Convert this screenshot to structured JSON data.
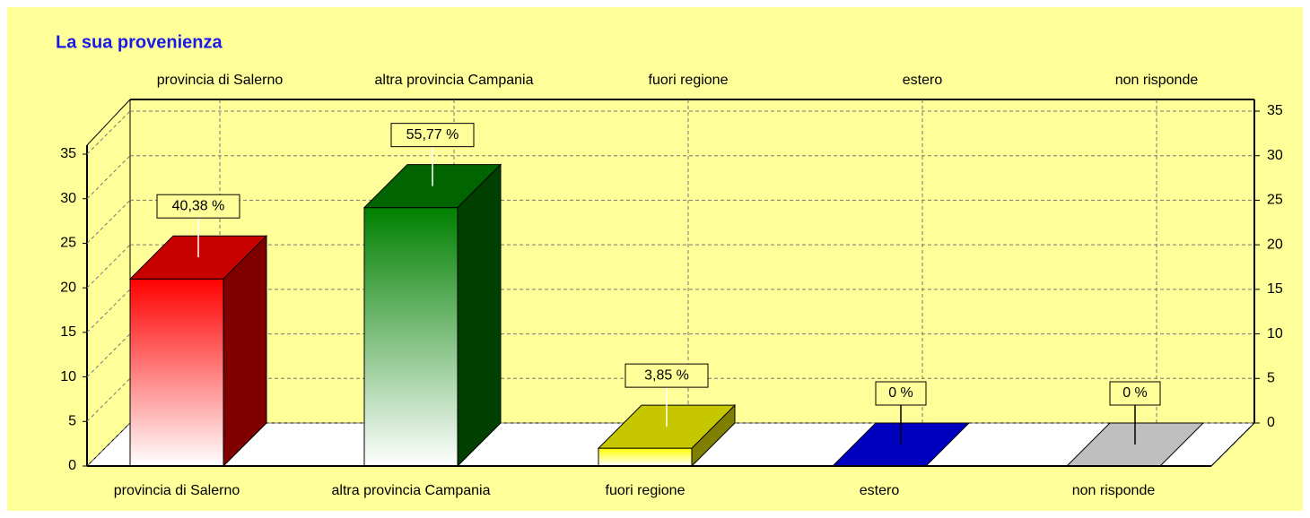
{
  "chart_data": {
    "type": "bar3d",
    "title": "La sua provenienza",
    "categories": [
      "provincia di Salerno",
      "altra provincia Campania",
      "fuori regione",
      "estero",
      "non risponde"
    ],
    "values": [
      21,
      29,
      2,
      0,
      0
    ],
    "percentages": [
      40.38,
      55.77,
      3.85,
      0,
      0
    ],
    "percentage_labels": [
      "40,38 %",
      "55,77 %",
      "3,85 %",
      "0 %",
      "0 %"
    ],
    "colors": [
      "#ff0000",
      "#008000",
      "#ffff00",
      "#0000f5",
      "#f5f5f5"
    ],
    "ylim": [
      0,
      35
    ],
    "yticks": [
      0,
      5,
      10,
      15,
      20,
      25,
      30,
      35
    ],
    "grid": true
  }
}
